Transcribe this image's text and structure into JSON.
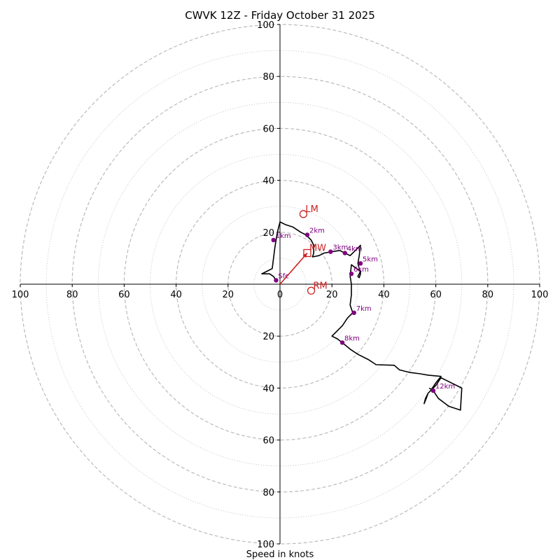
{
  "chart_data": {
    "type": "line",
    "title": "CWVK 12Z - Friday October 31 2025",
    "xlabel": "Speed in knots",
    "range": [
      -100,
      100
    ],
    "ring_step": 20,
    "minor_ring_step": 10,
    "axis_ticks": [
      "100",
      "80",
      "60",
      "40",
      "20",
      "0",
      "20",
      "40",
      "60",
      "80",
      "100"
    ],
    "y_ticks_top": [
      "20",
      "40",
      "60",
      "80",
      "100"
    ],
    "y_ticks_bottom": [
      "20",
      "40",
      "60",
      "80",
      "100"
    ],
    "grid": true,
    "colors": {
      "trace": "#000000",
      "markers": "#800080",
      "motion": "#cc2222",
      "grid": "#bbbbbb"
    },
    "hodograph": [
      [
        -1.5,
        1.5
      ],
      [
        -2.5,
        3
      ],
      [
        -4,
        4
      ],
      [
        -7,
        4
      ],
      [
        -3,
        6
      ],
      [
        -2,
        14
      ],
      [
        -1.5,
        17
      ],
      [
        -1,
        20
      ],
      [
        0,
        24
      ],
      [
        2,
        23
      ],
      [
        5,
        22
      ],
      [
        8,
        20
      ],
      [
        10,
        19
      ],
      [
        12,
        17
      ],
      [
        13,
        15
      ],
      [
        13,
        12
      ],
      [
        12.5,
        10.5
      ],
      [
        15,
        11
      ],
      [
        17,
        12
      ],
      [
        20,
        12.5
      ],
      [
        23,
        13
      ],
      [
        25,
        12
      ],
      [
        27,
        11
      ],
      [
        29,
        13
      ],
      [
        31,
        15
      ],
      [
        30.5,
        11
      ],
      [
        30,
        8
      ],
      [
        30.5,
        6
      ],
      [
        31,
        5
      ],
      [
        30,
        3
      ],
      [
        30.5,
        2.5
      ],
      [
        31,
        4
      ],
      [
        31,
        5
      ],
      [
        29.5,
        6
      ],
      [
        27.5,
        7.5
      ],
      [
        27,
        3
      ],
      [
        27.5,
        0
      ],
      [
        27.5,
        -4
      ],
      [
        27,
        -8
      ],
      [
        28,
        -11
      ],
      [
        26,
        -13
      ],
      [
        24,
        -16
      ],
      [
        22,
        -18
      ],
      [
        20,
        -20
      ],
      [
        22,
        -21
      ],
      [
        24,
        -22.5
      ],
      [
        27,
        -25
      ],
      [
        30,
        -27
      ],
      [
        34,
        -29
      ],
      [
        37,
        -31
      ],
      [
        44,
        -31.2
      ],
      [
        46,
        -33
      ],
      [
        50,
        -34
      ],
      [
        54,
        -34.5
      ],
      [
        57,
        -35
      ],
      [
        62,
        -35.5
      ],
      [
        60,
        -38
      ],
      [
        58,
        -41
      ],
      [
        57,
        -42
      ],
      [
        56,
        -44
      ],
      [
        55.5,
        -46
      ],
      [
        56.5,
        -43.5
      ],
      [
        57,
        -42
      ],
      [
        58,
        -41
      ],
      [
        60,
        -39
      ],
      [
        62,
        -36
      ],
      [
        70,
        -40
      ],
      [
        69.5,
        -48.5
      ],
      [
        65,
        -47
      ],
      [
        61,
        -44
      ],
      [
        59,
        -41
      ],
      [
        57.5,
        -40
      ]
    ],
    "height_markers": [
      {
        "label": "Sfc",
        "u": -1.5,
        "v": 1.5
      },
      {
        "label": "1km",
        "u": -2.5,
        "v": 17
      },
      {
        "label": "2km",
        "u": 10.5,
        "v": 19
      },
      {
        "label": "3km",
        "u": 19.5,
        "v": 12.5
      },
      {
        "label": "4km",
        "u": 25,
        "v": 12
      },
      {
        "label": "5km",
        "u": 31,
        "v": 8
      },
      {
        "label": "6km",
        "u": 27.5,
        "v": 4
      },
      {
        "label": "7km",
        "u": 28.5,
        "v": -11
      },
      {
        "label": "8km",
        "u": 24,
        "v": -22.5
      },
      {
        "label": "12km",
        "u": 59,
        "v": -41
      }
    ],
    "storm_motions": [
      {
        "label": "LM",
        "u": 9,
        "v": 27,
        "marker": "circle"
      },
      {
        "label": "MW",
        "u": 10.5,
        "v": 12,
        "marker": "square"
      },
      {
        "label": "RM",
        "u": 12,
        "v": -2.5,
        "marker": "circle"
      }
    ],
    "shear_vector": {
      "from": [
        0,
        0
      ],
      "to": [
        10.5,
        12
      ]
    }
  }
}
